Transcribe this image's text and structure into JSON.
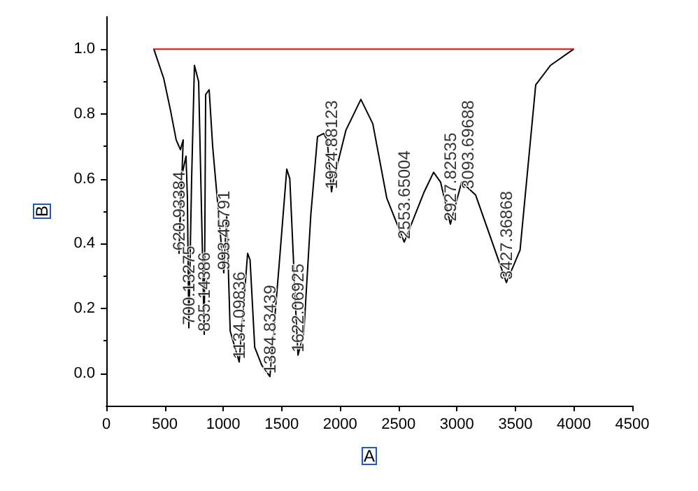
{
  "chart_data": {
    "type": "line",
    "xlabel": "A",
    "ylabel": "B",
    "xlim": [
      0,
      4500
    ],
    "xticks": [
      0,
      500,
      1000,
      1500,
      2000,
      2500,
      3000,
      3500,
      4000,
      4500
    ],
    "ylim": [
      -0.1,
      1.1
    ],
    "yticks": [
      {
        "value": 0,
        "label": "0.0"
      },
      0.2,
      0.4,
      0.6,
      0.8,
      {
        "value": 1,
        "label": "1.0"
      }
    ],
    "grid": false,
    "marker": "none",
    "line_style": "solid",
    "series": [
      {
        "color": "#000000",
        "x": [
          407,
          491,
          550,
          598,
          634,
          658,
          622,
          640,
          682,
          694,
          706,
          730,
          754,
          790,
          838,
          850,
          880,
          910,
          1005,
          1030,
          1060,
          1137,
          1209,
          1230,
          1270,
          1330,
          1400,
          1480,
          1544,
          1570,
          1620,
          1640,
          1690,
          1750,
          1807,
          1860,
          1890,
          1927,
          1940,
          2050,
          2178,
          2280,
          2400,
          2549,
          2720,
          2800,
          2860,
          2944,
          3040,
          3160,
          3423,
          3540,
          3674,
          3800,
          3997
        ],
        "values": [
          1.0,
          0.91,
          0.81,
          0.72,
          0.69,
          0.72,
          0.37,
          0.6,
          0.67,
          0.54,
          0.14,
          0.6,
          0.95,
          0.9,
          0.12,
          0.86,
          0.875,
          0.7,
          0.31,
          0.49,
          0.13,
          0.035,
          0.37,
          0.35,
          0.08,
          0.025,
          -0.01,
          0.34,
          0.63,
          0.6,
          0.2,
          0.056,
          0.125,
          0.49,
          0.73,
          0.74,
          0.72,
          0.56,
          0.59,
          0.75,
          0.845,
          0.77,
          0.54,
          0.405,
          0.56,
          0.62,
          0.59,
          0.46,
          0.59,
          0.55,
          0.28,
          0.38,
          0.89,
          0.95,
          1.0
        ]
      },
      {
        "color": "#ff0000",
        "x": [
          407,
          3997
        ],
        "values": [
          1.0,
          1.0
        ]
      }
    ],
    "annotations": [
      {
        "text": "620.93384",
        "x": 622,
        "y": 0.37
      },
      {
        "text": "700.13275",
        "x": 706,
        "y": 0.14
      },
      {
        "text": "835.14386",
        "x": 838,
        "y": 0.12
      },
      {
        "text": "993.45791",
        "x": 1005,
        "y": 0.31
      },
      {
        "text": "1134.09836",
        "x": 1137,
        "y": 0.035
      },
      {
        "text": "1384.83439",
        "x": 1400,
        "y": -0.01
      },
      {
        "text": "1622.06925",
        "x": 1640,
        "y": 0.056
      },
      {
        "text": "1924.88123",
        "x": 1927,
        "y": 0.56
      },
      {
        "text": "2553.65004",
        "x": 2549,
        "y": 0.405
      },
      {
        "text": "2927.82535",
        "x": 2944,
        "y": 0.46
      },
      {
        "text": "3093.69688",
        "x": 3093,
        "y": 0.56
      },
      {
        "text": "3427.36868",
        "x": 3423,
        "y": 0.28
      }
    ]
  }
}
